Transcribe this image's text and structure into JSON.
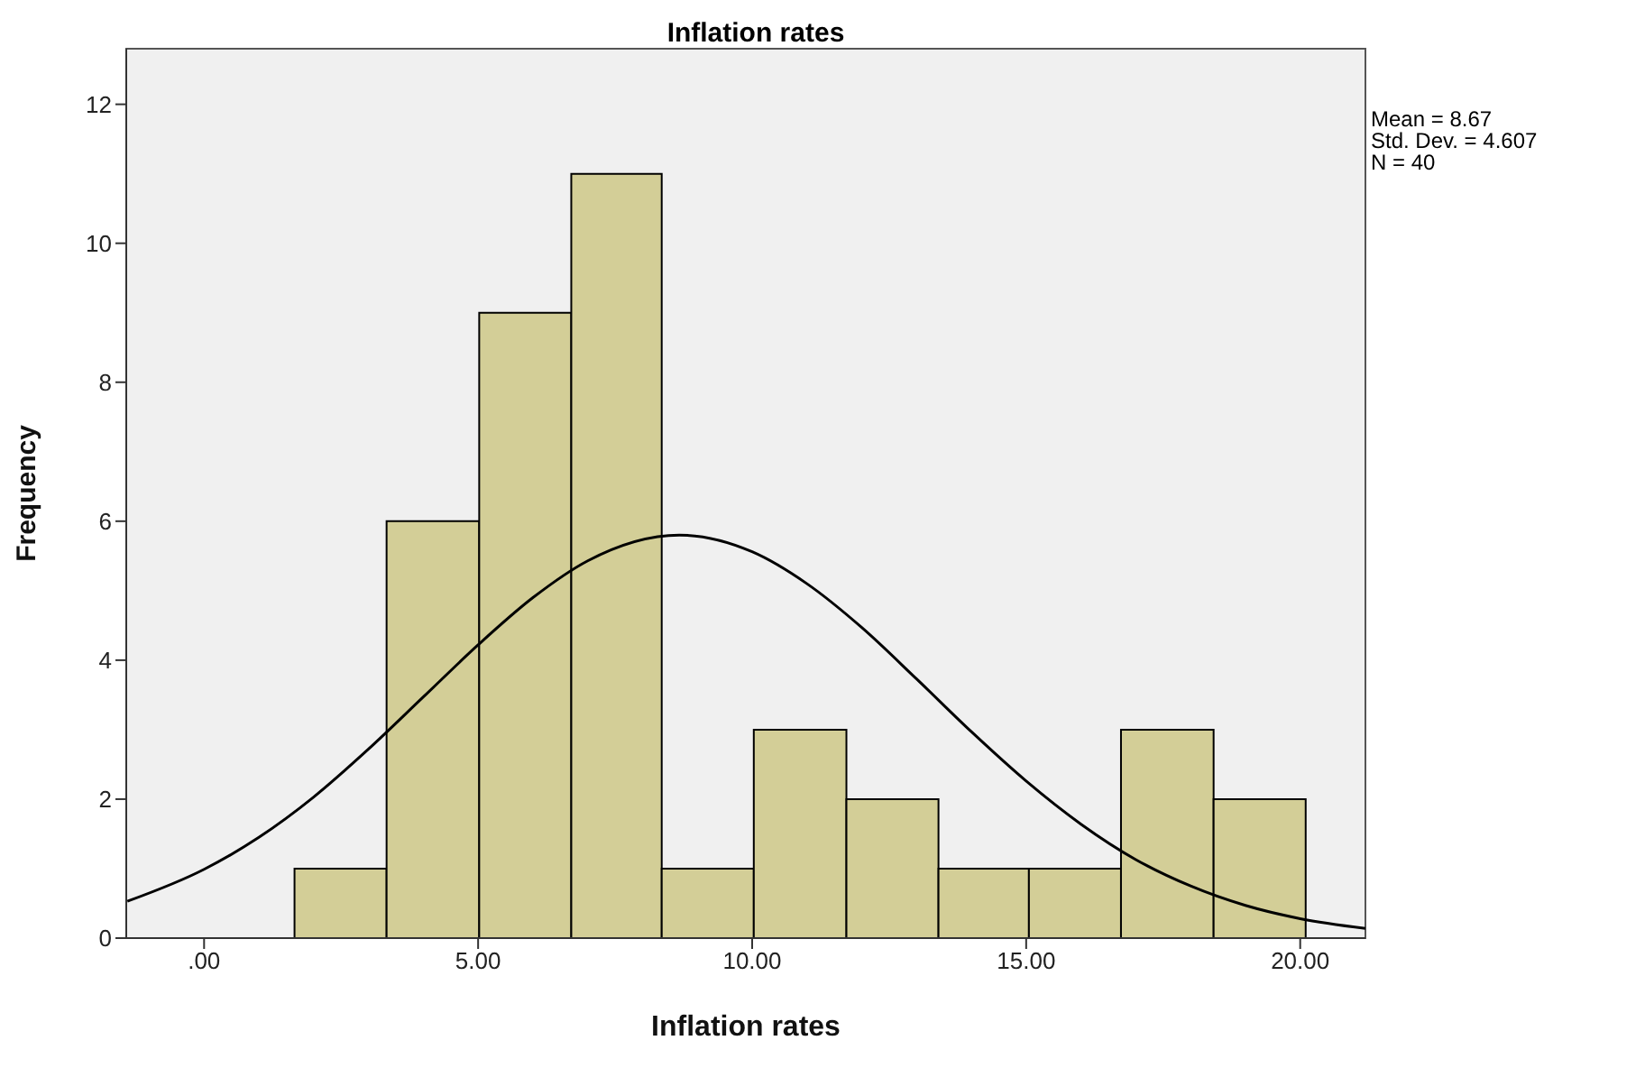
{
  "chart_data": {
    "type": "histogram",
    "title": "Inflation rates",
    "xlabel": "Inflation rates",
    "ylabel": "Frequency",
    "series": [
      {
        "color": "#d3ce97",
        "bins": [
          1.65,
          3.33,
          5.02,
          6.7,
          8.35,
          10.03,
          11.72,
          13.4,
          15.05,
          16.73,
          18.42,
          20.1
        ],
        "values": [
          1,
          6,
          9,
          11,
          1,
          3,
          2,
          1,
          1,
          3,
          2
        ]
      },
      {
        "type": "line",
        "color": "#000000",
        "x": [
          -1.4,
          0,
          1,
          2,
          3,
          4,
          5,
          6,
          7,
          8.67,
          10,
          11,
          12,
          13,
          14,
          15,
          16,
          17,
          18,
          19,
          20,
          21.19
        ],
        "values": [
          0.53,
          0.99,
          1.45,
          2.03,
          2.72,
          3.47,
          4.22,
          4.9,
          5.43,
          5.8,
          5.56,
          5.1,
          4.47,
          3.73,
          2.97,
          2.26,
          1.64,
          1.13,
          0.75,
          0.47,
          0.28,
          0.14
        ]
      }
    ],
    "marker": "none",
    "line_style": "solid",
    "xlim": [
      -1.42,
      21.19
    ],
    "xticks": [
      {
        "value": 0,
        "label": ".00"
      },
      {
        "value": 5,
        "label": "5.00"
      },
      {
        "value": 10,
        "label": "10.00"
      },
      {
        "value": 15,
        "label": "15.00"
      },
      {
        "value": 20,
        "label": "20.00"
      }
    ],
    "ylim": [
      0,
      12.8
    ],
    "yticks": [
      0,
      2,
      4,
      6,
      8,
      10,
      12
    ],
    "annotations": [
      "Mean = 8.67",
      "Std. Dev. = 4.607",
      "N = 40"
    ]
  }
}
